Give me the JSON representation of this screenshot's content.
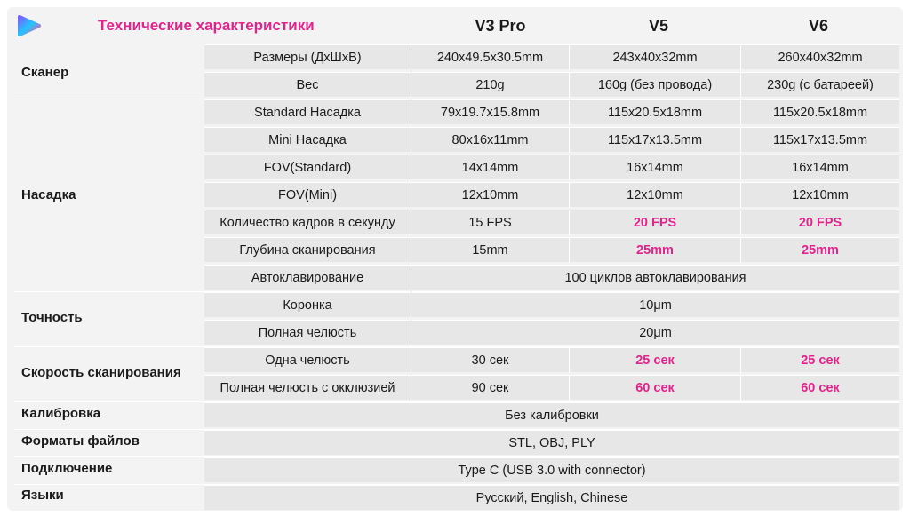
{
  "header": {
    "title": "Технические характеристики",
    "columns": [
      "V3 Pro",
      "V5",
      "V6"
    ]
  },
  "colors": {
    "accent": "#e0248c",
    "logo_gradient": [
      "#7b5cff",
      "#22c5ff",
      "#ff4fa0"
    ]
  },
  "categories": {
    "scanner": "Сканер",
    "tip": "Насадка",
    "accuracy": "Точность",
    "speed": "Скорость сканирования",
    "calibration": "Калибровка",
    "formats": "Форматы файлов",
    "connection": "Подключение",
    "languages": "Языки"
  },
  "rows": {
    "dimensions": {
      "param": "Размеры (ДхШхВ)",
      "v3": "240x49.5x30.5mm",
      "v5": "243x40x32mm",
      "v6": "260x40x32mm"
    },
    "weight": {
      "param": "Вес",
      "v3": "210g",
      "v5": "160g (без провода)",
      "v6": "230g (с батареей)"
    },
    "standard_tip": {
      "param": "Standard Насадка",
      "v3": "79x19.7x15.8mm",
      "v5": "115x20.5x18mm",
      "v6": "115x20.5x18mm"
    },
    "mini_tip": {
      "param": "Mini Насадка",
      "v3": "80x16x11mm",
      "v5": "115x17x13.5mm",
      "v6": "115x17x13.5mm"
    },
    "fov_standard": {
      "param": "FOV(Standard)",
      "v3": "14x14mm",
      "v5": "16x14mm",
      "v6": "16x14mm"
    },
    "fov_mini": {
      "param": "FOV(Mini)",
      "v3": "12x10mm",
      "v5": "12x10mm",
      "v6": "12x10mm"
    },
    "fps": {
      "param": "Количество кадров в секунду",
      "v3": "15 FPS",
      "v5": "20 FPS",
      "v6": "20 FPS"
    },
    "depth": {
      "param": "Глубина сканирования",
      "v3": "15mm",
      "v5": "25mm",
      "v6": "25mm"
    },
    "autoclave": {
      "param": "Автоклавирование",
      "all": "100 циклов автоклавирования"
    },
    "crown": {
      "param": "Коронка",
      "all": "10μm"
    },
    "full_jaw": {
      "param": "Полная челюсть",
      "all": "20μm"
    },
    "one_jaw": {
      "param": "Одна челюсть",
      "v3": "30 сек",
      "v5": "25 сек",
      "v6": "25 сек"
    },
    "full_jaw_occlusion": {
      "param": "Полная челюсть с окклюзией",
      "v3": "90 сек",
      "v5": "60 сек",
      "v6": "60 сек"
    },
    "calibration": {
      "all": "Без калибровки"
    },
    "formats": {
      "all": "STL, OBJ, PLY"
    },
    "connection": {
      "all": "Type C (USB 3.0 with connector)"
    },
    "languages": {
      "all": "Русский, English, Chinese"
    }
  }
}
